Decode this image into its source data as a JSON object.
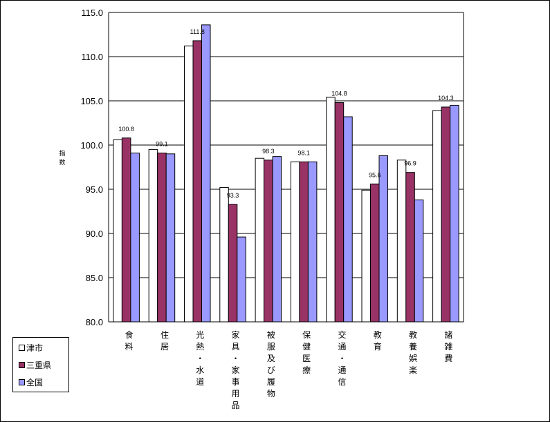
{
  "chart_data": {
    "type": "bar",
    "ylabel": "指数",
    "ylim": [
      80,
      115
    ],
    "yticks": [
      "115.0",
      "110.0",
      "105.0",
      "100.0",
      "95.0",
      "90.0",
      "85.0",
      "80.0"
    ],
    "grid": true,
    "legend_position": "bottom-left",
    "categories": [
      "食料",
      "住居",
      "光熱・水道",
      "家具・家事用品",
      "被服及び履物",
      "保健医療",
      "交通・通信",
      "教育",
      "教養娯楽",
      "諸雑費"
    ],
    "series": [
      {
        "name": "津市",
        "color": "#ffffff",
        "values": [
          100.6,
          99.5,
          111.2,
          95.2,
          98.5,
          98.1,
          105.4,
          94.9,
          98.3,
          103.9
        ]
      },
      {
        "name": "三重県",
        "color": "#993366",
        "values": [
          100.8,
          99.1,
          111.8,
          93.3,
          98.3,
          98.1,
          104.8,
          95.6,
          96.9,
          104.3
        ]
      },
      {
        "name": "全国",
        "color": "#9999ff",
        "values": [
          99.1,
          99.0,
          113.6,
          89.6,
          98.7,
          98.1,
          103.2,
          98.8,
          93.8,
          104.5
        ]
      }
    ],
    "data_labels": {
      "series": "三重県",
      "text": [
        "100.8",
        "99.1",
        "111.8",
        "93.3",
        "98.3",
        "98.1",
        "104.8",
        "95.6",
        "96.9",
        "104.3"
      ]
    }
  }
}
